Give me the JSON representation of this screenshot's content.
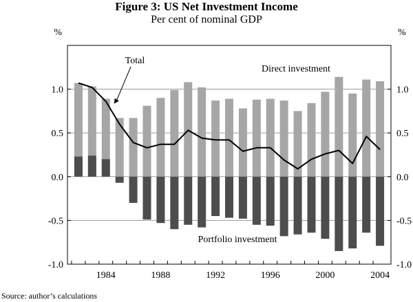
{
  "title": "Figure 3: US Net Investment Income",
  "subtitle": "Per cent of nominal GDP",
  "source": "Source: author’s calculations",
  "chart_data": {
    "type": "bar",
    "unit_label_left": "%",
    "unit_label_right": "%",
    "ylim": [
      -1.0,
      1.5
    ],
    "yticks": [
      -1.0,
      -0.5,
      0.0,
      0.5,
      1.0
    ],
    "ytick_labels": [
      "-1.0",
      "-0.5",
      "0.0",
      "0.5",
      "1.0"
    ],
    "xticks": [
      1984,
      1988,
      1992,
      1996,
      2000,
      2004
    ],
    "xtick_labels": [
      "1984",
      "1988",
      "1992",
      "1996",
      "2000",
      "2004"
    ],
    "xlim": [
      1981.2,
      2004.8
    ],
    "grid": true,
    "categories": [
      1982,
      1983,
      1984,
      1985,
      1986,
      1987,
      1988,
      1989,
      1990,
      1991,
      1992,
      1993,
      1994,
      1995,
      1996,
      1997,
      1998,
      1999,
      2000,
      2001,
      2002,
      2003,
      2004
    ],
    "series": [
      {
        "name": "Direct investment",
        "color": "#a6a6a6",
        "values": [
          1.07,
          1.03,
          0.89,
          0.67,
          0.67,
          0.81,
          0.9,
          0.99,
          1.08,
          1.02,
          0.87,
          0.89,
          0.78,
          0.88,
          0.89,
          0.87,
          0.75,
          0.84,
          0.97,
          1.14,
          0.95,
          1.11,
          1.09
        ]
      },
      {
        "name": "Portfolio investment",
        "color": "#4d4d4d",
        "values": [
          0.23,
          0.24,
          0.2,
          -0.07,
          -0.3,
          -0.49,
          -0.53,
          -0.6,
          -0.55,
          -0.58,
          -0.45,
          -0.47,
          -0.48,
          -0.55,
          -0.56,
          -0.68,
          -0.66,
          -0.64,
          -0.71,
          -0.85,
          -0.82,
          -0.64,
          -0.79
        ]
      },
      {
        "name": "Total",
        "type": "line",
        "color": "#000000",
        "values": [
          1.07,
          1.02,
          0.86,
          0.6,
          0.39,
          0.33,
          0.37,
          0.37,
          0.53,
          0.44,
          0.42,
          0.42,
          0.29,
          0.33,
          0.33,
          0.19,
          0.09,
          0.2,
          0.26,
          0.3,
          0.15,
          0.46,
          0.31
        ]
      }
    ],
    "annotations": [
      {
        "text": "Total",
        "target_series": "Total"
      },
      {
        "text": "Direct investment"
      },
      {
        "text": "Portfolio investment"
      }
    ]
  }
}
